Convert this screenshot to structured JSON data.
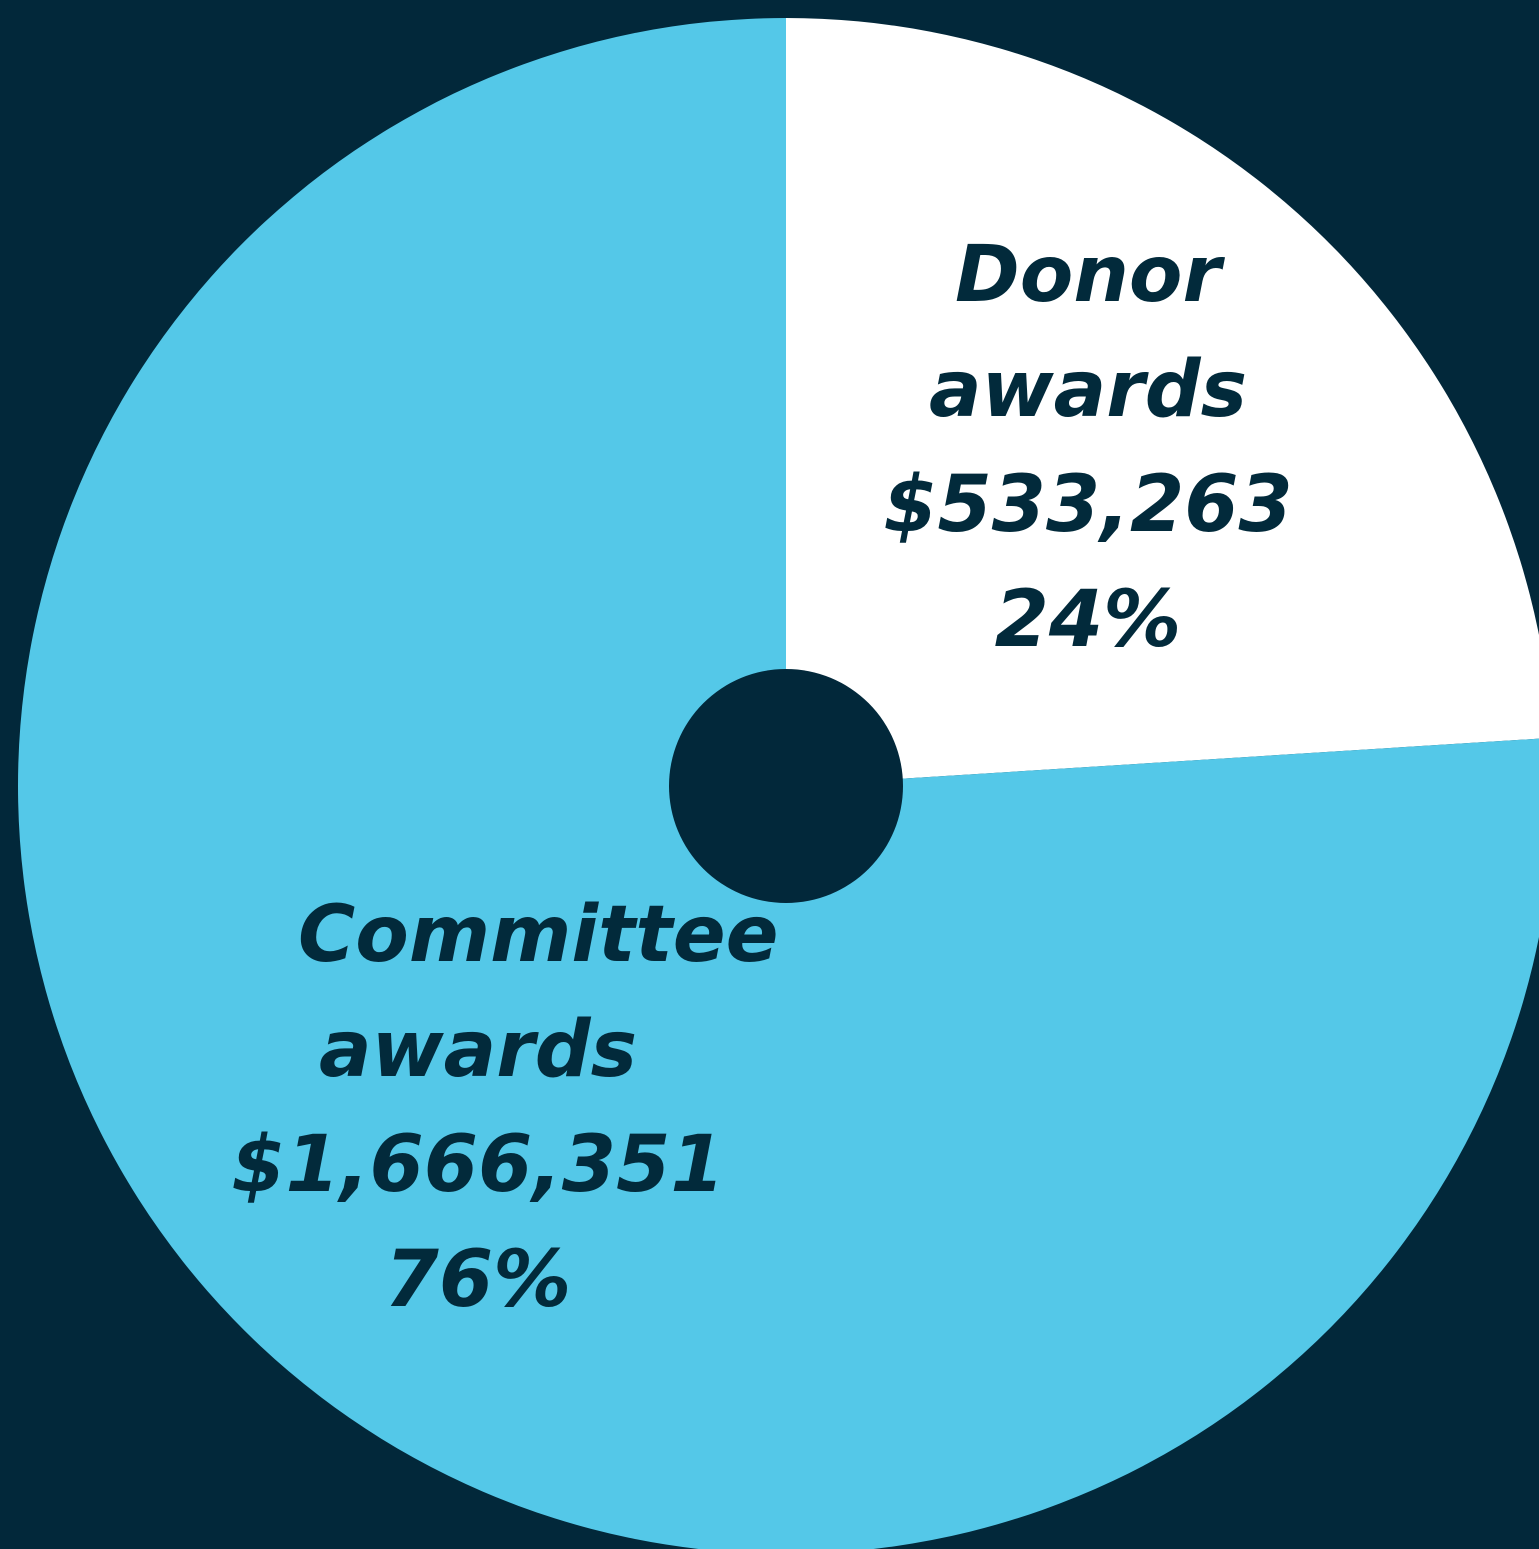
{
  "chart_data": {
    "type": "pie",
    "categories": [
      "Donor awards",
      "Committee awards"
    ],
    "values": [
      24,
      76
    ],
    "value_labels": [
      "24%",
      "76%"
    ],
    "amount_labels": [
      "$533,263",
      "$1,666,351"
    ],
    "colors": [
      "#ffffff",
      "#54c8e8"
    ]
  }
}
